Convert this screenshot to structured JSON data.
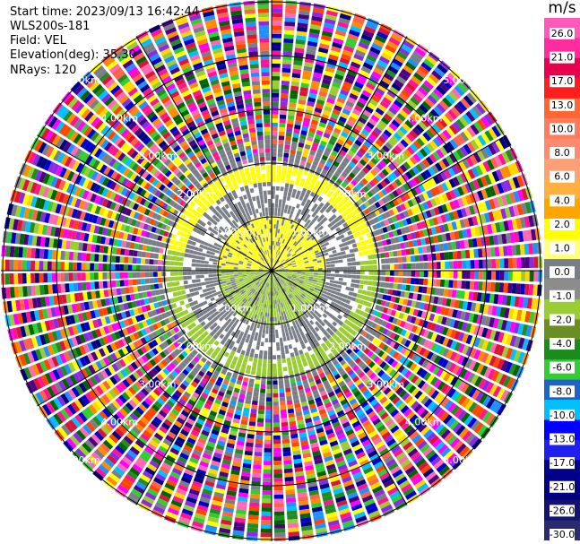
{
  "header": {
    "start_time": "Start time: 2023/09/13 16:42:44",
    "instrument": "WLS200s-181",
    "field": "Field: VEL",
    "elevation": "Elevation(deg): 35.30",
    "nrays": "NRays: 120"
  },
  "chart_data": {
    "type": "polar-ppi",
    "field": "VEL",
    "units": "m/s",
    "nrays": 120,
    "range_rings_km": [
      1.0,
      2.0,
      3.0,
      4.0,
      5.0
    ],
    "ring_label_texts": [
      "1.00km",
      "2.00km",
      "3.00km",
      "4.00km",
      "5.00km"
    ],
    "colorbar": {
      "units_label": "m/s",
      "tick_labels": [
        "26.0",
        "21.0",
        "17.0",
        "13.0",
        "10.0",
        "8.0",
        "6.0",
        "4.0",
        "2.0",
        "1.0",
        "0.0",
        "-1.0",
        "-2.0",
        "-4.0",
        "-6.0",
        "-8.0",
        "-10.0",
        "-13.0",
        "-17.0",
        "-21.0",
        "-26.0",
        "-30.0"
      ],
      "colors": [
        "#ff5ab9",
        "#ff2ca0",
        "#e6004e",
        "#ff1e1e",
        "#ff6633",
        "#ff7d5a",
        "#ff8a70",
        "#ff9f75",
        "#ffb040",
        "#ffa500",
        "#ffff00",
        "#ffff80",
        "#7a7f87",
        "#8c8c8c",
        "#9acd32",
        "#6b8e23",
        "#1a8c1a",
        "#32cd32",
        "#1e64c8",
        "#00bfff",
        "#0000ff",
        "#1f1ff0",
        "#00008b",
        "#000080",
        "#14146e",
        "#2a2a70"
      ]
    },
    "near_field_pattern": {
      "toward_positive_sector": "north",
      "positive_color": "#ffff00",
      "negative_color": "#9acd32",
      "zero_color": "#7a7f87"
    }
  }
}
